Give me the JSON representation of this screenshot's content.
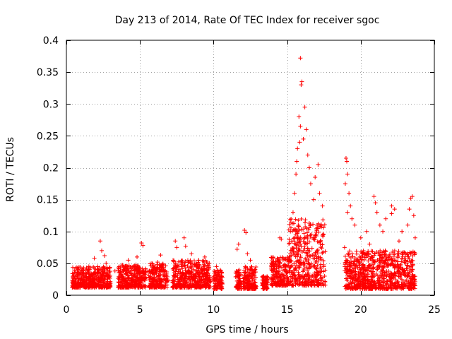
{
  "chart_data": {
    "type": "scatter",
    "title": "Day 213 of 2014, Rate Of TEC Index for receiver sgoc",
    "xlabel": "GPS time / hours",
    "ylabel": "ROTI / TECUs",
    "xlim": [
      0,
      25
    ],
    "ylim": [
      0,
      0.4
    ],
    "xticks": [
      0,
      5,
      10,
      15,
      20,
      25
    ],
    "yticks": [
      0,
      0.05,
      0.1,
      0.15,
      0.2,
      0.25,
      0.3,
      0.35,
      0.4
    ],
    "xtick_labels": [
      "0",
      "5",
      "10",
      "15",
      "20",
      "25"
    ],
    "ytick_labels": [
      "0",
      "0.05",
      "0.1",
      "0.15",
      "0.2",
      "0.25",
      "0.3",
      "0.35",
      "0.4"
    ],
    "grid": true,
    "marker": "+",
    "marker_color": "#ff0000",
    "segments": [
      {
        "x_start": 0.4,
        "x_end": 3.0,
        "y_low": 0.012,
        "y_high": 0.045
      },
      {
        "x_start": 3.5,
        "x_end": 5.4,
        "y_low": 0.012,
        "y_high": 0.048
      },
      {
        "x_start": 5.6,
        "x_end": 6.9,
        "y_low": 0.012,
        "y_high": 0.05
      },
      {
        "x_start": 7.2,
        "x_end": 9.8,
        "y_low": 0.012,
        "y_high": 0.055
      },
      {
        "x_start": 10.0,
        "x_end": 10.6,
        "y_low": 0.01,
        "y_high": 0.04
      },
      {
        "x_start": 11.5,
        "x_end": 11.9,
        "y_low": 0.01,
        "y_high": 0.04
      },
      {
        "x_start": 12.0,
        "x_end": 12.9,
        "y_low": 0.01,
        "y_high": 0.045
      },
      {
        "x_start": 13.3,
        "x_end": 13.7,
        "y_low": 0.01,
        "y_high": 0.03
      },
      {
        "x_start": 13.9,
        "x_end": 15.1,
        "y_low": 0.015,
        "y_high": 0.06
      },
      {
        "x_start": 15.1,
        "x_end": 17.6,
        "y_low": 0.015,
        "y_high": 0.12
      },
      {
        "x_start": 18.9,
        "x_end": 23.7,
        "y_low": 0.01,
        "y_high": 0.07
      }
    ],
    "outliers": [
      [
        2.3,
        0.085
      ],
      [
        2.4,
        0.07
      ],
      [
        2.6,
        0.062
      ],
      [
        1.9,
        0.058
      ],
      [
        2.7,
        0.05
      ],
      [
        3.3,
        0.038
      ],
      [
        4.2,
        0.055
      ],
      [
        5.1,
        0.082
      ],
      [
        5.2,
        0.078
      ],
      [
        4.8,
        0.06
      ],
      [
        6.4,
        0.063
      ],
      [
        6.2,
        0.052
      ],
      [
        7.4,
        0.085
      ],
      [
        7.5,
        0.075
      ],
      [
        8.0,
        0.09
      ],
      [
        8.1,
        0.077
      ],
      [
        8.5,
        0.065
      ],
      [
        9.4,
        0.06
      ],
      [
        10.2,
        0.045
      ],
      [
        11.7,
        0.08
      ],
      [
        11.6,
        0.072
      ],
      [
        12.1,
        0.102
      ],
      [
        12.2,
        0.098
      ],
      [
        12.3,
        0.065
      ],
      [
        12.5,
        0.055
      ],
      [
        14.0,
        0.05
      ],
      [
        14.1,
        0.045
      ],
      [
        14.5,
        0.09
      ],
      [
        14.6,
        0.088
      ],
      [
        15.9,
        0.372
      ],
      [
        16.0,
        0.335
      ],
      [
        15.95,
        0.33
      ],
      [
        15.8,
        0.28
      ],
      [
        16.2,
        0.295
      ],
      [
        15.9,
        0.265
      ],
      [
        16.3,
        0.26
      ],
      [
        16.1,
        0.245
      ],
      [
        15.85,
        0.24
      ],
      [
        16.4,
        0.22
      ],
      [
        15.7,
        0.23
      ],
      [
        15.65,
        0.21
      ],
      [
        16.5,
        0.2
      ],
      [
        17.1,
        0.205
      ],
      [
        16.9,
        0.185
      ],
      [
        15.6,
        0.19
      ],
      [
        16.6,
        0.175
      ],
      [
        17.2,
        0.16
      ],
      [
        17.4,
        0.14
      ],
      [
        16.8,
        0.15
      ],
      [
        15.5,
        0.16
      ],
      [
        15.4,
        0.13
      ],
      [
        19.0,
        0.215
      ],
      [
        19.05,
        0.21
      ],
      [
        18.95,
        0.175
      ],
      [
        19.1,
        0.19
      ],
      [
        19.2,
        0.16
      ],
      [
        19.3,
        0.14
      ],
      [
        19.1,
        0.13
      ],
      [
        19.4,
        0.12
      ],
      [
        19.6,
        0.11
      ],
      [
        20.0,
        0.09
      ],
      [
        20.4,
        0.1
      ],
      [
        20.9,
        0.155
      ],
      [
        21.0,
        0.145
      ],
      [
        21.1,
        0.13
      ],
      [
        21.3,
        0.11
      ],
      [
        21.5,
        0.1
      ],
      [
        21.7,
        0.12
      ],
      [
        22.1,
        0.14
      ],
      [
        22.3,
        0.135
      ],
      [
        22.1,
        0.128
      ],
      [
        22.8,
        0.1
      ],
      [
        23.4,
        0.152
      ],
      [
        23.5,
        0.155
      ],
      [
        23.3,
        0.135
      ],
      [
        23.6,
        0.125
      ],
      [
        23.2,
        0.11
      ],
      [
        23.7,
        0.09
      ],
      [
        22.6,
        0.085
      ],
      [
        20.6,
        0.08
      ],
      [
        18.9,
        0.075
      ]
    ]
  }
}
